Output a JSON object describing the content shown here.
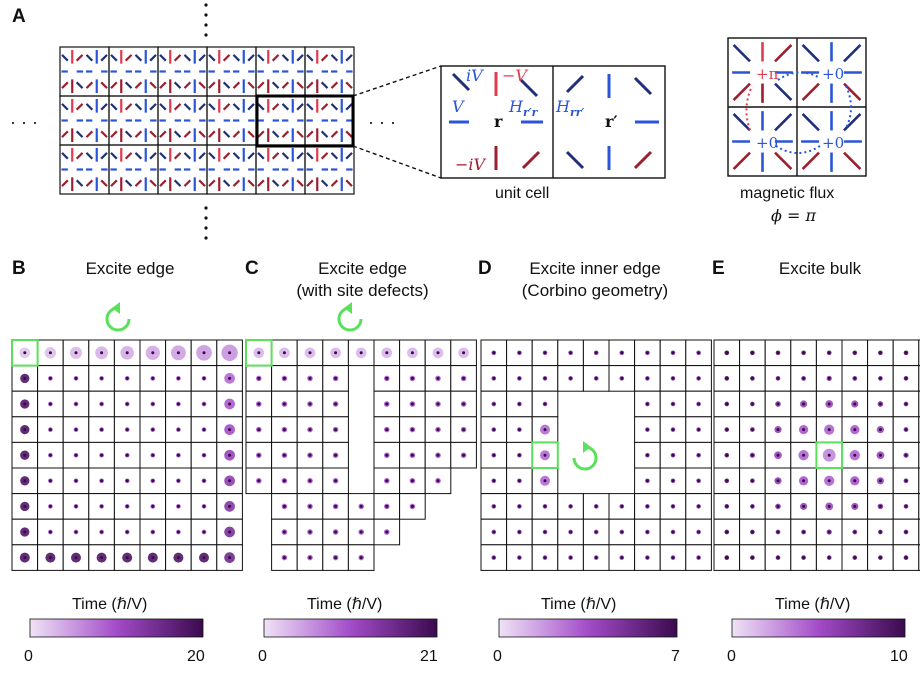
{
  "panel_a": {
    "letter": "A",
    "ellipsis": "· · ·",
    "unit_cell": {
      "caption": "unit cell",
      "labels": {
        "iV": "iV",
        "minusV": "−V",
        "V": "V",
        "minus_iV": "−iV",
        "h1": "H",
        "h1_sub": "r′r",
        "h2": "H",
        "h2_sub": "rr′",
        "r": "r",
        "rprime": "r′"
      }
    },
    "flux": {
      "caption": "magnetic flux",
      "phi": "ϕ = π",
      "plaquettes": [
        "+π",
        "+0",
        "+0",
        "+0"
      ]
    }
  },
  "panels": [
    {
      "letter": "B",
      "title": [
        "Excite edge"
      ],
      "cbar_title": "Time (ℏ/V)",
      "cbar_min": "0",
      "cbar_max": "20",
      "rotation": "counterclockwise"
    },
    {
      "letter": "C",
      "title": [
        "Excite edge",
        "(with site defects)"
      ],
      "cbar_title": "Time (ℏ/V)",
      "cbar_min": "0",
      "cbar_max": "21",
      "rotation": "counterclockwise"
    },
    {
      "letter": "D",
      "title": [
        "Excite inner edge",
        "(Corbino geometry)"
      ],
      "cbar_title": "Time (ℏ/V)",
      "cbar_min": "0",
      "cbar_max": "7",
      "rotation": "clockwise"
    },
    {
      "letter": "E",
      "title": [
        "Excite bulk"
      ],
      "cbar_title": "Time (ℏ/V)",
      "cbar_min": "0",
      "cbar_max": "10",
      "rotation": ""
    }
  ],
  "colors": {
    "red": "#e23a4e",
    "darkred": "#9c1f2e",
    "blue": "#2a55d8",
    "darkblue": "#1f2f7a",
    "purple_light": "#efe3f6",
    "purple_dark": "#3b0a4e",
    "green": "#5be05b"
  }
}
